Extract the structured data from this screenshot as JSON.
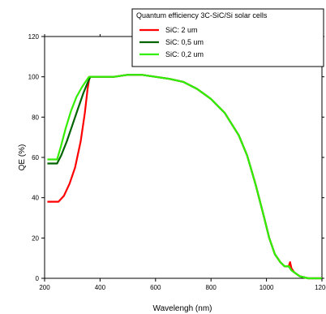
{
  "chart_data": {
    "type": "line",
    "title": "",
    "xlabel": "Wavelengh (nm)",
    "ylabel": "QE (%)",
    "xlim": [
      200,
      1200
    ],
    "ylim": [
      0,
      120
    ],
    "x_ticks": [
      200,
      400,
      600,
      800,
      1000,
      1200
    ],
    "y_ticks": [
      0,
      20,
      40,
      60,
      80,
      100,
      120
    ],
    "grid": false,
    "legend": {
      "title": "Quantum efficiency 3C-SiC/Si solar cells",
      "placement": "top-right"
    },
    "series": [
      {
        "name": "SiC: 2 um",
        "color": "#ff0000",
        "points": [
          [
            210,
            38
          ],
          [
            250,
            38
          ],
          [
            270,
            41
          ],
          [
            290,
            47
          ],
          [
            310,
            55
          ],
          [
            330,
            68
          ],
          [
            345,
            82
          ],
          [
            355,
            94
          ],
          [
            362,
            100
          ],
          [
            370,
            100
          ],
          [
            400,
            100
          ],
          [
            450,
            100
          ],
          [
            500,
            101
          ],
          [
            550,
            101
          ],
          [
            600,
            100
          ],
          [
            650,
            99
          ],
          [
            700,
            97.5
          ],
          [
            750,
            94
          ],
          [
            800,
            89
          ],
          [
            850,
            82
          ],
          [
            900,
            71
          ],
          [
            930,
            61
          ],
          [
            960,
            47
          ],
          [
            990,
            31
          ],
          [
            1010,
            20
          ],
          [
            1030,
            12
          ],
          [
            1050,
            8
          ],
          [
            1065,
            6
          ],
          [
            1080,
            6
          ],
          [
            1085,
            8
          ],
          [
            1090,
            5
          ],
          [
            1100,
            3
          ],
          [
            1120,
            1
          ],
          [
            1150,
            0
          ],
          [
            1200,
            0
          ]
        ]
      },
      {
        "name": "SiC: 0,5 um",
        "color": "#006400",
        "points": [
          [
            210,
            57
          ],
          [
            245,
            57
          ],
          [
            260,
            61
          ],
          [
            280,
            68
          ],
          [
            300,
            76
          ],
          [
            320,
            84
          ],
          [
            340,
            92
          ],
          [
            355,
            97
          ],
          [
            365,
            100
          ],
          [
            400,
            100
          ],
          [
            450,
            100
          ],
          [
            500,
            101
          ],
          [
            550,
            101
          ],
          [
            600,
            100
          ],
          [
            650,
            99
          ],
          [
            700,
            97.5
          ],
          [
            750,
            94
          ],
          [
            800,
            89
          ],
          [
            850,
            82
          ],
          [
            900,
            71
          ],
          [
            930,
            61
          ],
          [
            960,
            47
          ],
          [
            990,
            31
          ],
          [
            1010,
            20
          ],
          [
            1030,
            12
          ],
          [
            1050,
            8
          ],
          [
            1065,
            6
          ],
          [
            1080,
            6
          ],
          [
            1090,
            4
          ],
          [
            1100,
            3
          ],
          [
            1120,
            1
          ],
          [
            1150,
            0
          ],
          [
            1200,
            0
          ]
        ]
      },
      {
        "name": "SiC: 0,2 um",
        "color": "#33ee00",
        "points": [
          [
            210,
            59
          ],
          [
            245,
            59
          ],
          [
            258,
            65
          ],
          [
            275,
            74
          ],
          [
            295,
            83
          ],
          [
            315,
            90
          ],
          [
            335,
            95
          ],
          [
            350,
            98
          ],
          [
            360,
            100
          ],
          [
            400,
            100
          ],
          [
            450,
            100
          ],
          [
            500,
            101
          ],
          [
            550,
            101
          ],
          [
            600,
            100
          ],
          [
            650,
            99
          ],
          [
            700,
            97.5
          ],
          [
            750,
            94
          ],
          [
            800,
            89
          ],
          [
            850,
            82
          ],
          [
            900,
            71
          ],
          [
            930,
            61
          ],
          [
            960,
            47
          ],
          [
            990,
            31
          ],
          [
            1010,
            20
          ],
          [
            1030,
            12
          ],
          [
            1050,
            8
          ],
          [
            1065,
            6
          ],
          [
            1080,
            6
          ],
          [
            1090,
            4
          ],
          [
            1100,
            3
          ],
          [
            1120,
            1
          ],
          [
            1150,
            0
          ],
          [
            1200,
            0
          ]
        ]
      }
    ]
  }
}
